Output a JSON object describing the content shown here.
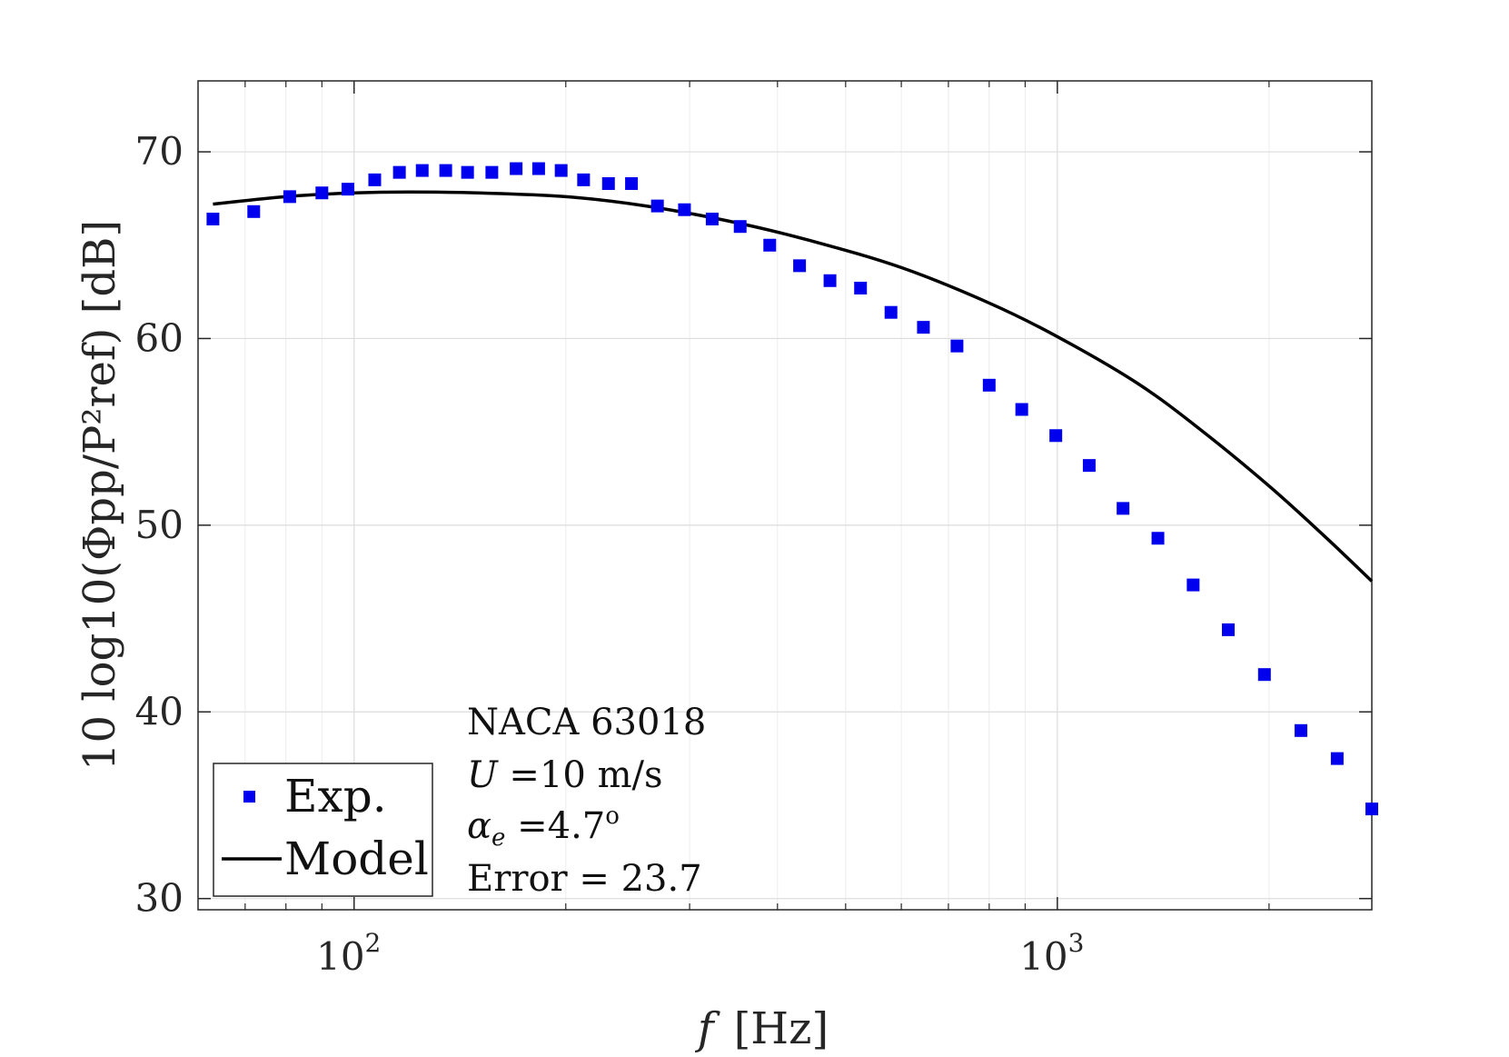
{
  "chart_data": {
    "type": "scatter",
    "title": "",
    "xlabel": "f  [Hz]",
    "xlabel_parts": {
      "symbol": "f",
      "unit": "[Hz]"
    },
    "ylabel": "10 log10(Φpp/P²ref) [dB]",
    "xscale": "log",
    "xlim": [
      60,
      2800
    ],
    "ylim": [
      29.4,
      73.8
    ],
    "x_ticks": [
      {
        "value": 100,
        "label": "10",
        "exp": "2"
      },
      {
        "value": 1000,
        "label": "10",
        "exp": "3"
      }
    ],
    "y_ticks": [
      {
        "value": 30,
        "label": "30"
      },
      {
        "value": 40,
        "label": "40"
      },
      {
        "value": 50,
        "label": "50"
      },
      {
        "value": 60,
        "label": "60"
      },
      {
        "value": 70,
        "label": "70"
      }
    ],
    "grid": true,
    "legend": {
      "position": "bottom-left",
      "entries": [
        {
          "label": "Exp.",
          "style": "marker",
          "color": "#0000ee"
        },
        {
          "label": "Model",
          "style": "line",
          "color": "#000000"
        }
      ]
    },
    "annotations": [
      {
        "text": "NACA 63018"
      },
      {
        "sym": "U",
        "text": " =10 m/s"
      },
      {
        "sym": "α",
        "sub": "e",
        "text": " =4.7",
        "sup": "o"
      },
      {
        "text": "Error = 23.7"
      }
    ],
    "series": [
      {
        "name": "Exp.",
        "type": "scatter",
        "color": "#0000ee",
        "x": [
          63,
          72,
          81,
          90,
          98,
          107,
          116,
          125,
          135,
          145,
          157,
          170,
          183,
          197,
          212,
          230,
          248,
          270,
          295,
          323,
          354,
          390,
          430,
          475,
          525,
          580,
          645,
          720,
          800,
          890,
          995,
          1110,
          1240,
          1390,
          1560,
          1750,
          1970,
          2220,
          2500,
          2800
        ],
        "y": [
          66.4,
          66.8,
          67.6,
          67.8,
          68.0,
          68.5,
          68.9,
          69.0,
          69.0,
          68.9,
          68.9,
          69.1,
          69.1,
          69.0,
          68.5,
          68.3,
          68.3,
          67.1,
          66.9,
          66.4,
          66.0,
          65.0,
          63.9,
          63.1,
          62.7,
          61.4,
          60.6,
          59.6,
          57.5,
          56.2,
          54.8,
          53.2,
          50.9,
          49.3,
          46.8,
          44.4,
          42.0,
          39.0,
          37.5,
          34.8
        ]
      },
      {
        "name": "Model",
        "type": "line",
        "color": "#000000",
        "x": [
          63,
          80,
          100,
          120,
          150,
          200,
          260,
          350,
          450,
          600,
          800,
          1000,
          1300,
          1600,
          2000,
          2400,
          2800
        ],
        "y": [
          67.2,
          67.6,
          67.8,
          67.85,
          67.8,
          67.6,
          67.1,
          66.2,
          65.2,
          63.8,
          61.9,
          60.1,
          57.6,
          55.1,
          52.1,
          49.4,
          47.0
        ]
      }
    ]
  }
}
